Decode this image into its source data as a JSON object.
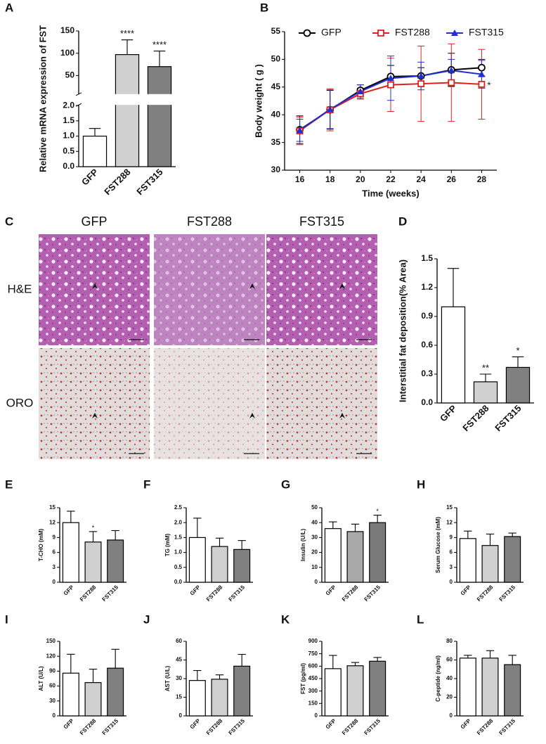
{
  "chart_data": [
    {
      "label": "A",
      "type": "bar",
      "categories": [
        "GFP",
        "FST288",
        "FST315"
      ],
      "values": [
        1.0,
        97,
        70
      ],
      "errors": [
        0.25,
        33,
        35
      ],
      "annotations": [
        null,
        "****",
        "****"
      ],
      "colors": [
        "#ffffff",
        "#d0d0d0",
        "#808080"
      ],
      "ylim": [
        0,
        150
      ],
      "axis_break": [
        2,
        10
      ],
      "yticks": [
        {
          "value": 0,
          "label": "0.0"
        },
        0.5,
        {
          "value": 1,
          "label": "1.0"
        },
        1.5,
        {
          "value": 2,
          "label": "2.0"
        },
        50,
        100,
        150
      ],
      "y_label": "Relative mRNA expression of FST"
    },
    {
      "label": "B",
      "type": "line",
      "x": [
        16,
        18,
        20,
        22,
        24,
        26,
        28
      ],
      "xlim": [
        15,
        29
      ],
      "xticks": [
        16,
        18,
        20,
        22,
        24,
        26,
        28
      ],
      "ylim": [
        30,
        55
      ],
      "yticks": [
        30,
        35,
        40,
        45,
        50,
        55
      ],
      "x_label": "Time (weeks)",
      "y_label": "Body weight ( g )",
      "legend": "top",
      "series": [
        {
          "name": "GFP",
          "color": "#000000",
          "marker": "circle",
          "values": [
            37.3,
            40.9,
            44.4,
            46.9,
            47.0,
            48.1,
            48.5
          ],
          "errors": [
            2.5,
            3.5,
            1.0,
            2.0,
            1.5,
            3.0,
            1.5
          ]
        },
        {
          "name": "FST288",
          "color": "#e02020",
          "marker": "square",
          "values": [
            37.1,
            40.9,
            43.8,
            45.4,
            45.6,
            45.8,
            45.5
          ],
          "errors": [
            2.5,
            3.8,
            1.0,
            4.8,
            6.8,
            7.0,
            6.3
          ],
          "end_label": "*"
        },
        {
          "name": "FST315",
          "color": "#2030d0",
          "marker": "triangle",
          "values": [
            37.2,
            41.0,
            44.2,
            46.6,
            47.0,
            48.0,
            47.3
          ],
          "errors": [
            2.0,
            3.5,
            1.2,
            4.0,
            2.5,
            2.0,
            2.5
          ]
        }
      ]
    },
    {
      "label": "D",
      "type": "bar",
      "categories": [
        "GFP",
        "FST288",
        "FST315"
      ],
      "values": [
        1.0,
        0.22,
        0.37
      ],
      "errors": [
        0.4,
        0.08,
        0.11
      ],
      "annotations": [
        null,
        "**",
        "*"
      ],
      "colors": [
        "#ffffff",
        "#d0d0d0",
        "#808080"
      ],
      "ylim": [
        0,
        1.5
      ],
      "yticks": [
        {
          "value": 0,
          "label": "0.0"
        },
        0.3,
        0.6,
        0.9,
        1.2,
        1.5
      ],
      "y_label": "Interstitial  fat deposition(% Area)"
    },
    {
      "label": "E",
      "type": "bar",
      "categories": [
        "GFP",
        "FST288",
        "FST315"
      ],
      "values": [
        12.0,
        8.1,
        8.5
      ],
      "errors": [
        2.3,
        2.1,
        1.9
      ],
      "annotations": [
        null,
        "*",
        null
      ],
      "colors": [
        "#ffffff",
        "#d0d0d0",
        "#808080"
      ],
      "ylim": [
        0,
        15
      ],
      "yticks": [
        0,
        3,
        6,
        9,
        12,
        15
      ],
      "y_label": "T-CHO (mM)"
    },
    {
      "label": "F",
      "type": "bar",
      "categories": [
        "GFP",
        "FST288",
        "FST315"
      ],
      "values": [
        1.5,
        1.2,
        1.1
      ],
      "errors": [
        0.65,
        0.28,
        0.3
      ],
      "annotations": [
        null,
        null,
        null
      ],
      "colors": [
        "#ffffff",
        "#d0d0d0",
        "#808080"
      ],
      "ylim": [
        0,
        2.5
      ],
      "yticks": [
        {
          "value": 0,
          "label": "0.0"
        },
        0.5,
        {
          "value": 1,
          "label": "1.0"
        },
        1.5,
        {
          "value": 2,
          "label": "2.0"
        },
        2.5
      ],
      "y_label": "TG (mM)"
    },
    {
      "label": "G",
      "type": "bar",
      "categories": [
        "GFP",
        "FST288",
        "FST315"
      ],
      "values": [
        36,
        34,
        40
      ],
      "errors": [
        4.5,
        5,
        5
      ],
      "annotations": [
        null,
        null,
        "*"
      ],
      "colors": [
        "#ffffff",
        "#a8a8a8",
        "#7a7a7a"
      ],
      "ylim": [
        0,
        50
      ],
      "yticks": [
        0,
        10,
        20,
        30,
        40,
        50
      ],
      "y_label": "Insulin (U/L)"
    },
    {
      "label": "H",
      "type": "bar",
      "categories": [
        "GFP",
        "FST288",
        "FST315"
      ],
      "values": [
        8.8,
        7.4,
        9.2
      ],
      "errors": [
        1.5,
        2.3,
        0.7
      ],
      "annotations": [
        null,
        null,
        null
      ],
      "colors": [
        "#ffffff",
        "#d0d0d0",
        "#808080"
      ],
      "ylim": [
        0,
        15
      ],
      "yticks": [
        0,
        3,
        6,
        9,
        12,
        15
      ],
      "y_label": "Serum Glucose (mM)"
    },
    {
      "label": "I",
      "type": "bar",
      "categories": [
        "GFP",
        "FST288",
        "FST315"
      ],
      "values": [
        86,
        67,
        96
      ],
      "errors": [
        38,
        27,
        38
      ],
      "annotations": [
        null,
        null,
        null
      ],
      "colors": [
        "#ffffff",
        "#d0d0d0",
        "#808080"
      ],
      "ylim": [
        0,
        150
      ],
      "yticks": [
        0,
        30,
        60,
        90,
        120,
        150
      ],
      "y_label": "ALT (U/L)"
    },
    {
      "label": "J",
      "type": "bar",
      "categories": [
        "GFP",
        "FST288",
        "FST315"
      ],
      "values": [
        28.5,
        29.5,
        40
      ],
      "errors": [
        8,
        3.5,
        9.5
      ],
      "annotations": [
        null,
        null,
        null
      ],
      "colors": [
        "#ffffff",
        "#d0d0d0",
        "#808080"
      ],
      "ylim": [
        0,
        60
      ],
      "yticks": [
        0,
        15,
        30,
        45,
        60
      ],
      "y_label": "AST (U/L)"
    },
    {
      "label": "K",
      "type": "bar",
      "categories": [
        "GFP",
        "FST288",
        "FST315"
      ],
      "values": [
        570,
        605,
        660
      ],
      "errors": [
        160,
        40,
        45
      ],
      "annotations": [
        null,
        null,
        null
      ],
      "colors": [
        "#ffffff",
        "#d0d0d0",
        "#808080"
      ],
      "ylim": [
        0,
        900
      ],
      "yticks": [
        0,
        150,
        300,
        450,
        600,
        750,
        900
      ],
      "y_label": "FST (pg/ml)"
    },
    {
      "label": "L",
      "type": "bar",
      "categories": [
        "GFP",
        "FST288",
        "FST315"
      ],
      "values": [
        62,
        62,
        55
      ],
      "errors": [
        3,
        8,
        10
      ],
      "annotations": [
        null,
        null,
        null
      ],
      "colors": [
        "#ffffff",
        "#d0d0d0",
        "#808080"
      ],
      "ylim": [
        0,
        80
      ],
      "yticks": [
        0,
        20,
        40,
        60,
        80
      ],
      "y_label": "C-peptide (ng/ml)"
    }
  ],
  "image_panel": {
    "label": "C",
    "columns": [
      "GFP",
      "FST288",
      "FST315"
    ],
    "rows": [
      "H&E",
      "ORO"
    ]
  }
}
